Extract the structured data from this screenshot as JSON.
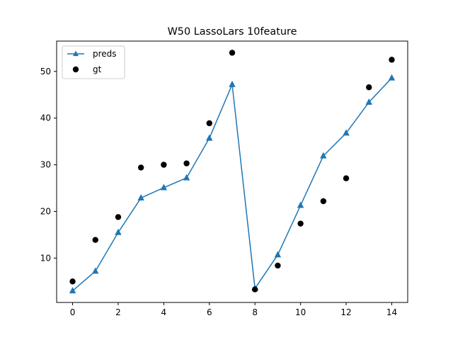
{
  "chart_data": {
    "type": "line",
    "title": "W50 LassoLars 10feature",
    "xlabel": "",
    "ylabel": "",
    "x": [
      0,
      1,
      2,
      3,
      4,
      5,
      6,
      7,
      8,
      9,
      10,
      11,
      12,
      13,
      14
    ],
    "xlim": [
      -0.7,
      14.7
    ],
    "ylim": [
      0.5,
      56.5
    ],
    "xticks": [
      0,
      2,
      4,
      6,
      8,
      10,
      12,
      14
    ],
    "yticks": [
      10,
      20,
      30,
      40,
      50
    ],
    "grid": false,
    "legend_position": "upper-left",
    "series": [
      {
        "name": "preds",
        "kind": "line",
        "marker": "triangle",
        "color": "#1f77b4",
        "values": [
          3.0,
          7.2,
          15.5,
          22.9,
          25.1,
          27.2,
          35.7,
          47.2,
          3.5,
          10.7,
          21.3,
          31.9,
          36.8,
          43.4,
          48.6
        ]
      },
      {
        "name": "gt",
        "kind": "scatter",
        "marker": "circle",
        "color": "#000000",
        "values": [
          5.0,
          13.9,
          18.8,
          29.4,
          30.0,
          30.3,
          38.9,
          54.0,
          3.3,
          8.4,
          17.4,
          22.2,
          27.1,
          46.6,
          52.5
        ]
      }
    ]
  }
}
